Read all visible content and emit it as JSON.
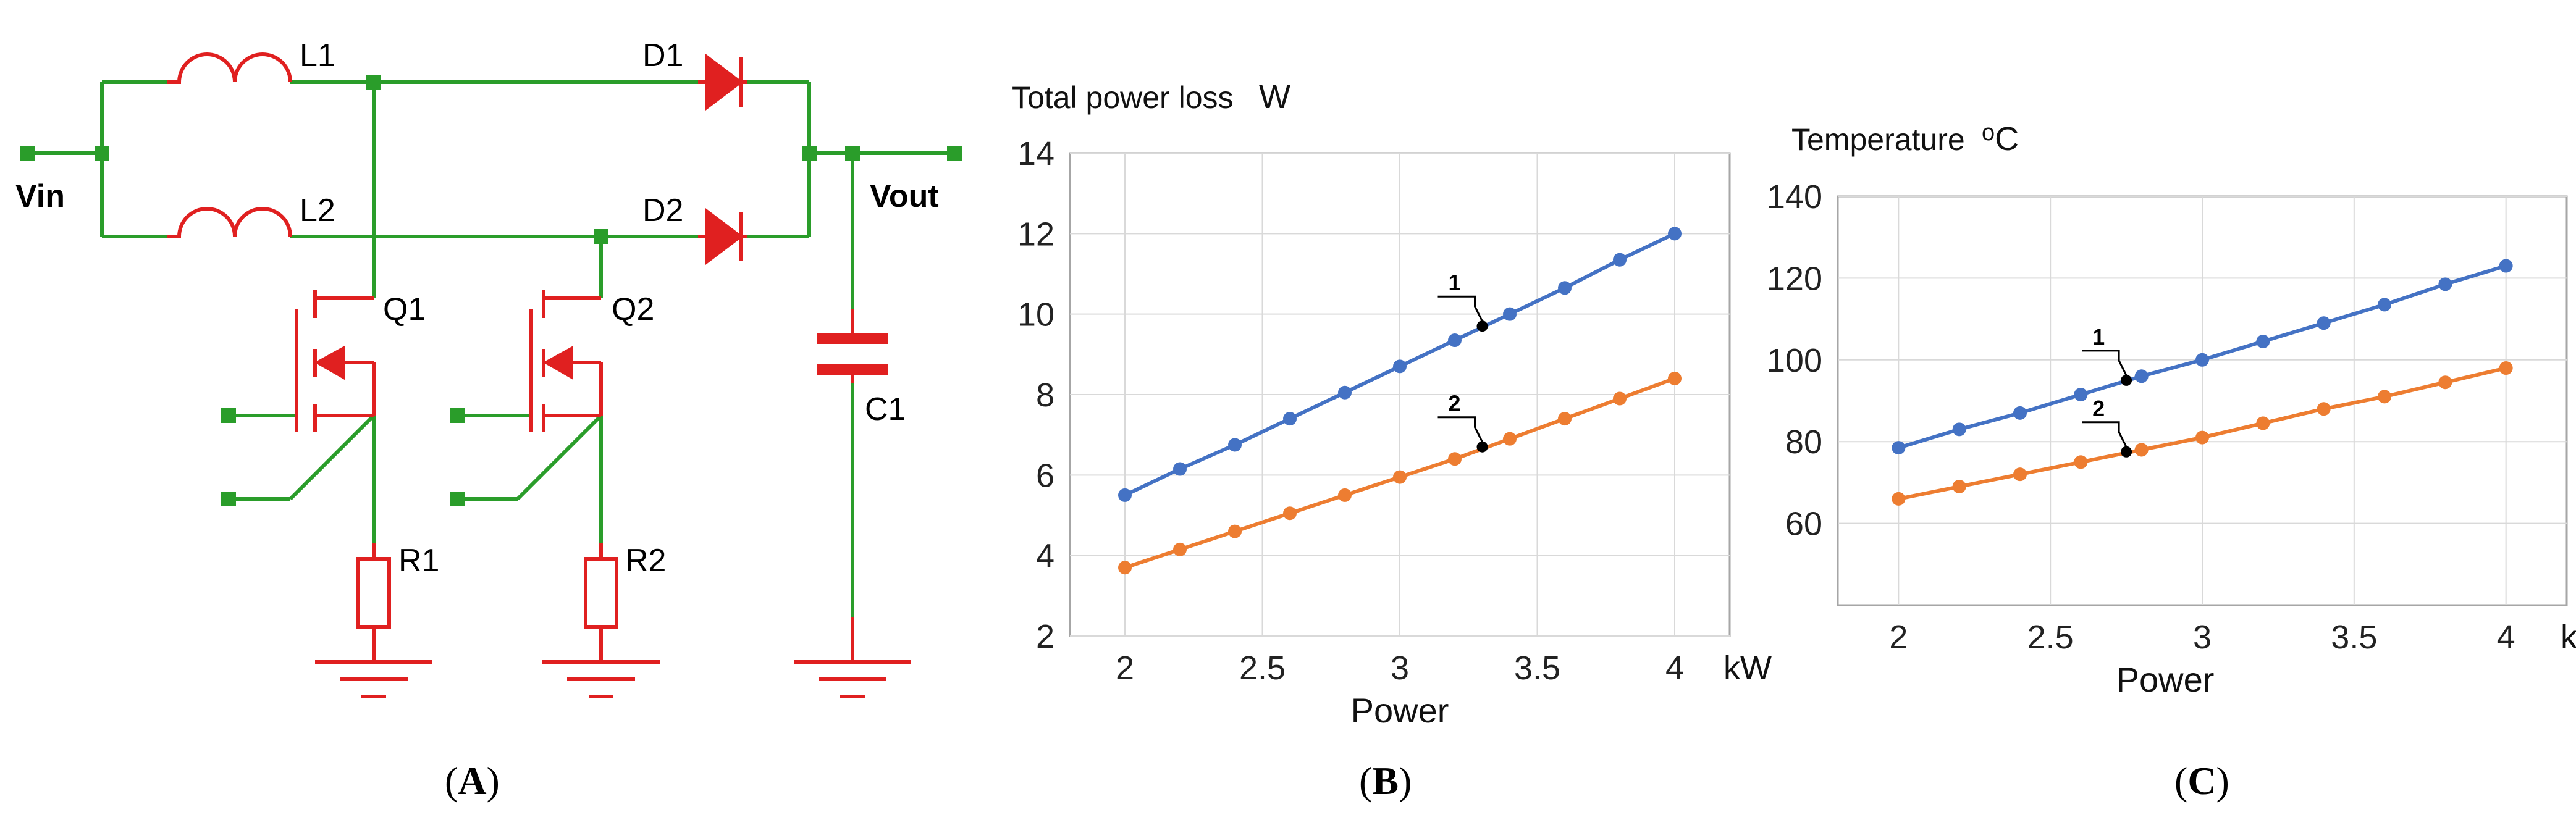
{
  "captions": {
    "a": "A",
    "b": "B",
    "c": "C"
  },
  "colors": {
    "wire": "#2a9d2a",
    "component": "#e02020",
    "series1": "#4472c4",
    "series2": "#ed7d31",
    "grid": "#d9d9d9",
    "frame": "#a6a6a6"
  },
  "schematic": {
    "vin": "Vin",
    "vout": "Vout",
    "l1": "L1",
    "l2": "L2",
    "d1": "D1",
    "d2": "D2",
    "q1": "Q1",
    "q2": "Q2",
    "c1": "C1",
    "r1": "R1",
    "r2": "R2"
  },
  "chart_data": [
    {
      "type": "line",
      "title": "Total power loss",
      "ylabel_unit": "W",
      "xlabel": "Power",
      "xlabel_unit": "kW",
      "xlim": [
        1.8,
        4.2
      ],
      "ylim": [
        2,
        14
      ],
      "xticks": [
        "2",
        "2.5",
        "3",
        "3.5",
        "4"
      ],
      "yticks": [
        "2",
        "4",
        "6",
        "8",
        "10",
        "12",
        "14"
      ],
      "grid": true,
      "series": [
        {
          "name": "1",
          "x": [
            2,
            2.2,
            2.4,
            2.6,
            2.8,
            3.0,
            3.2,
            3.4,
            3.6,
            3.8,
            4.0
          ],
          "values": [
            5.5,
            6.15,
            6.75,
            7.4,
            8.05,
            8.7,
            9.35,
            10.0,
            10.65,
            11.35,
            12.0
          ]
        },
        {
          "name": "2",
          "x": [
            2,
            2.2,
            2.4,
            2.6,
            2.8,
            3.0,
            3.2,
            3.4,
            3.6,
            3.8,
            4.0
          ],
          "values": [
            3.7,
            4.15,
            4.6,
            5.05,
            5.5,
            5.95,
            6.4,
            6.9,
            7.4,
            7.9,
            8.4
          ]
        }
      ],
      "annotations": [
        {
          "label": "1",
          "x": 3.3,
          "y": 9.7
        },
        {
          "label": "2",
          "x": 3.3,
          "y": 6.7
        }
      ]
    },
    {
      "type": "line",
      "title": "Temperature",
      "ylabel_unit": "oC",
      "xlabel": "Power",
      "xlabel_unit": "kW",
      "xlim": [
        1.8,
        4.2
      ],
      "ylim": [
        40,
        140
      ],
      "xticks": [
        "2",
        "2.5",
        "3",
        "3.5",
        "4"
      ],
      "yticks": [
        "60",
        "80",
        "100",
        "120",
        "140"
      ],
      "grid": true,
      "series": [
        {
          "name": "1",
          "x": [
            2,
            2.2,
            2.4,
            2.6,
            2.8,
            3.0,
            3.2,
            3.4,
            3.6,
            3.8,
            4.0
          ],
          "values": [
            78.5,
            83,
            87,
            91.5,
            96,
            100,
            104.5,
            109,
            113.5,
            118.5,
            123
          ]
        },
        {
          "name": "2",
          "x": [
            2,
            2.2,
            2.4,
            2.6,
            2.8,
            3.0,
            3.2,
            3.4,
            3.6,
            3.8,
            4.0
          ],
          "values": [
            66,
            69,
            72,
            75,
            78,
            81,
            84.5,
            88,
            91,
            94.5,
            98
          ]
        }
      ],
      "annotations": [
        {
          "label": "1",
          "x": 2.75,
          "y": 95
        },
        {
          "label": "2",
          "x": 2.75,
          "y": 77.5
        }
      ]
    }
  ]
}
